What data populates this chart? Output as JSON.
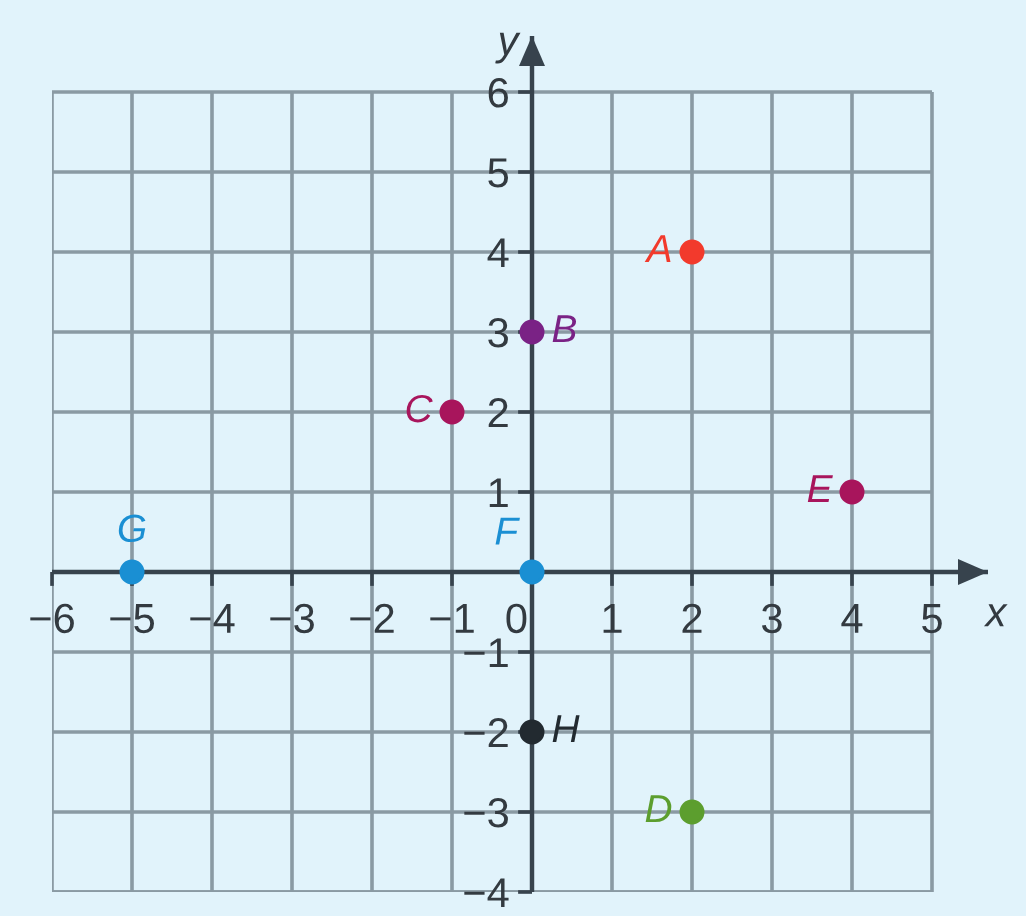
{
  "chart_data": {
    "type": "scatter",
    "xlabel": "x",
    "ylabel": "y",
    "xlim": [
      -6,
      5.7
    ],
    "ylim": [
      -4,
      6.7
    ],
    "xticks": [
      {
        "value": -6,
        "label": "−6"
      },
      {
        "value": -5,
        "label": "−5"
      },
      {
        "value": -4,
        "label": "−4"
      },
      {
        "value": -3,
        "label": "−3"
      },
      {
        "value": -2,
        "label": "−2"
      },
      {
        "value": -1,
        "label": "−1"
      },
      0,
      1,
      2,
      3,
      4,
      5
    ],
    "yticks": [
      {
        "value": -4,
        "label": "−4"
      },
      {
        "value": -3,
        "label": "−3"
      },
      {
        "value": -2,
        "label": "−2"
      },
      {
        "value": -1,
        "label": "−1"
      },
      1,
      2,
      3,
      4,
      5,
      6
    ],
    "grid": true,
    "marker": "circle",
    "legend": false,
    "series": [
      {
        "name": "A",
        "color": "#f23a2c",
        "x": [
          2
        ],
        "values": [
          4
        ]
      },
      {
        "name": "B",
        "color": "#7a2285",
        "x": [
          0
        ],
        "values": [
          3
        ]
      },
      {
        "name": "C",
        "color": "#a8155c",
        "x": [
          -1
        ],
        "values": [
          2
        ]
      },
      {
        "name": "D",
        "color": "#5c9e2e",
        "x": [
          2
        ],
        "values": [
          -3
        ]
      },
      {
        "name": "E",
        "color": "#a8155c",
        "x": [
          4
        ],
        "values": [
          1
        ]
      },
      {
        "name": "F",
        "color": "#1a8fd3",
        "x": [
          0
        ],
        "values": [
          0
        ]
      },
      {
        "name": "G",
        "color": "#1a8fd3",
        "x": [
          -5
        ],
        "values": [
          0
        ]
      },
      {
        "name": "H",
        "color": "#222a30",
        "x": [
          0
        ],
        "values": [
          -2
        ]
      }
    ]
  }
}
